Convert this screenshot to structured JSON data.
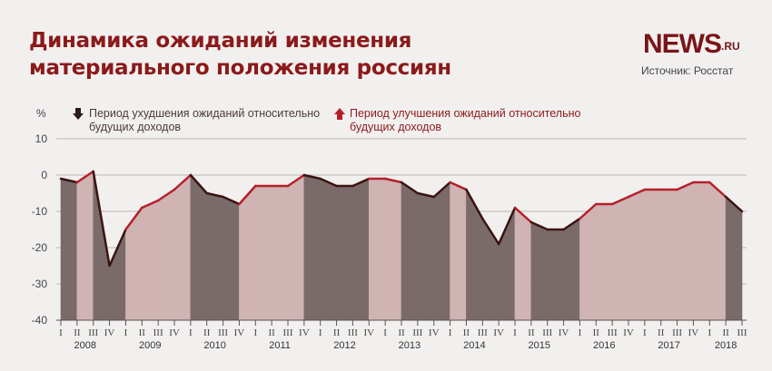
{
  "title": "Динамика ожиданий изменения материального положения россиян",
  "brand": {
    "name": "NEWS",
    "suffix": ".RU"
  },
  "source": "Источник: Росстат",
  "colors": {
    "title": "#8b1a1a",
    "decline_fill": "#7a6a6a",
    "improve_fill": "#d0b3b3",
    "decline_line": "#3a1410",
    "improve_line": "#b51f2a",
    "grid": "#bdb6b4"
  },
  "chart_data": {
    "type": "area",
    "ylabel": "%",
    "ylim": [
      -40,
      10
    ],
    "yticks": [
      10,
      0,
      -10,
      -20,
      -30,
      -40
    ],
    "grid": true,
    "legend": [
      {
        "key": "down",
        "label": "Период ухудшения ожиданий относительно будущих доходов",
        "icon": "arrow-down-icon"
      },
      {
        "key": "up",
        "label": "Период улучшения ожиданий относительно будущих доходов",
        "icon": "arrow-up-icon"
      }
    ],
    "quarters": [
      "I",
      "II",
      "III",
      "IV"
    ],
    "years": [
      "2008",
      "2009",
      "2010",
      "2011",
      "2012",
      "2013",
      "2014",
      "2015",
      "2016",
      "2017",
      "2018"
    ],
    "values": [
      -1,
      -2,
      1,
      -25,
      -15,
      -9,
      -7,
      -4,
      0,
      -5,
      -6,
      -8,
      -3,
      -3,
      -3,
      0,
      -1,
      -3,
      -3,
      -1,
      -1,
      -2,
      -5,
      -6,
      -2,
      -4,
      -12,
      -19,
      -9,
      -13,
      -15,
      -15,
      -12,
      -8,
      -8,
      -6,
      -4,
      -4,
      -4,
      -2,
      -2,
      -6,
      -10
    ],
    "periods": [
      "down",
      "up",
      "down",
      "down",
      "up",
      "up",
      "up",
      "up",
      "down",
      "down",
      "down",
      "up",
      "up",
      "up",
      "up",
      "down",
      "down",
      "down",
      "down",
      "up",
      "up",
      "down",
      "down",
      "down",
      "up",
      "down",
      "down",
      "down",
      "up",
      "down",
      "down",
      "down",
      "up",
      "up",
      "up",
      "up",
      "up",
      "up",
      "up",
      "up",
      "up",
      "down",
      "down"
    ]
  }
}
